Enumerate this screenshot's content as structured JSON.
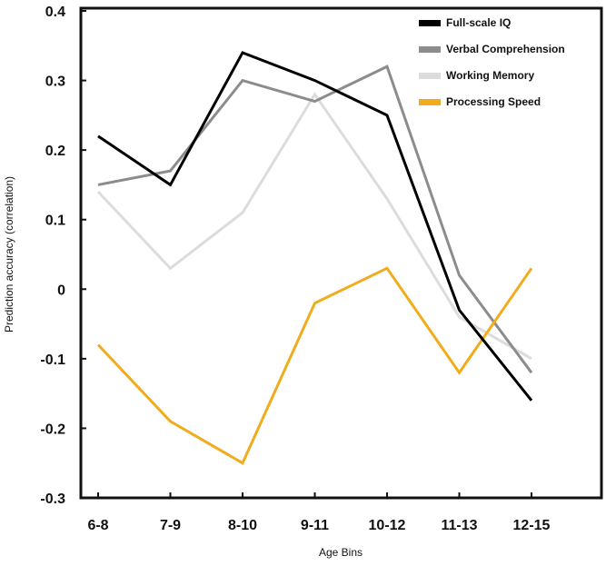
{
  "chart_data": {
    "type": "line",
    "title": "",
    "xlabel": "Age Bins",
    "ylabel": "Prediction accuracy (correlation)",
    "categories": [
      "6-8",
      "7-9",
      "8-10",
      "9-11",
      "10-12",
      "11-13",
      "12-15"
    ],
    "ylim": [
      -0.3,
      0.4
    ],
    "yticks": [
      "0.4",
      "0.3",
      "0.2",
      "0.1",
      "0",
      "-0.1",
      "-0.2",
      "-0.3"
    ],
    "ytick_values": [
      0.4,
      0.3,
      0.2,
      0.1,
      0,
      -0.1,
      -0.2,
      -0.3
    ],
    "grid": false,
    "legend_position": "top-right",
    "series": [
      {
        "name": "Full-scale IQ",
        "color": "#000000",
        "values": [
          0.22,
          0.15,
          0.34,
          0.3,
          0.25,
          -0.03,
          -0.16
        ]
      },
      {
        "name": "Verbal Comprehension",
        "color": "#8c8c8c",
        "values": [
          0.15,
          0.17,
          0.3,
          0.27,
          0.32,
          0.02,
          -0.12
        ]
      },
      {
        "name": "Working Memory",
        "color": "#dcdcdc",
        "values": [
          0.14,
          0.03,
          0.11,
          0.28,
          0.13,
          -0.04,
          -0.1
        ]
      },
      {
        "name": "Processing Speed",
        "color": "#f0ac1c",
        "values": [
          -0.08,
          -0.19,
          -0.25,
          -0.02,
          0.03,
          -0.12,
          0.03
        ]
      }
    ]
  }
}
